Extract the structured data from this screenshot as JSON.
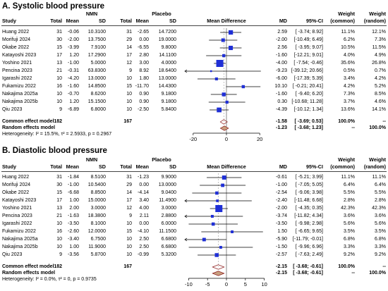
{
  "panels": [
    {
      "title": "A. Systolic blood pressure",
      "headers": {
        "study": "Study",
        "nmn": "NMN",
        "placebo": "Placebo",
        "total": "Total",
        "mean": "Mean",
        "sd": "SD",
        "mean_difference": "Mean Difference",
        "md": "MD",
        "ci": "95%-CI",
        "weight": "Weight",
        "common": "(common)",
        "random": "(random)"
      },
      "studies": [
        {
          "study": "Huang 2022",
          "nmn_total": "31",
          "nmn_mean": "-0.06",
          "nmn_sd": "10.3100",
          "pl_total": "31",
          "pl_mean": "-2.65",
          "pl_sd": "14.7200",
          "md": "2.59",
          "ci": "[ -3.74; 8.92]",
          "w_common": "11.1%",
          "w_random": "12.1%"
        },
        {
          "study": "Morifuji 2024",
          "nmn_total": "30",
          "nmn_mean": "-2.00",
          "nmn_sd": "13.7500",
          "pl_total": "29",
          "pl_mean": "0.00",
          "pl_sd": "19.0000",
          "md": "-2.00",
          "ci": "[-10.49; 6.49]",
          "w_common": "6.2%",
          "w_random": "7.3%"
        },
        {
          "study": "Okabe 2022",
          "nmn_total": "15",
          "nmn_mean": "-3.99",
          "nmn_sd": "7.9100",
          "pl_total": "14",
          "pl_mean": "-6.55",
          "pl_sd": "9.8000",
          "md": "2.56",
          "ci": "[ -3.95; 9.07]",
          "w_common": "10.5%",
          "w_random": "11.5%"
        },
        {
          "study": "Katayoshi 2023",
          "nmn_total": "17",
          "nmn_mean": "1.20",
          "nmn_sd": "17.2900",
          "pl_total": "17",
          "pl_mean": "2.80",
          "pl_sd": "14.1100",
          "md": "-1.60",
          "ci": "[-12.21; 9.01]",
          "w_common": "4.0%",
          "w_random": "4.9%"
        },
        {
          "study": "Yoshino 2021",
          "nmn_total": "13",
          "nmn_mean": "-1.00",
          "nmn_sd": "5.0000",
          "pl_total": "12",
          "pl_mean": "3.00",
          "pl_sd": "4.0000",
          "md": "-4.00",
          "ci": "[ -7.54; -0.46]",
          "w_common": "35.6%",
          "w_random": "26.8%"
        },
        {
          "study": "Pencina 2023",
          "nmn_total": "21",
          "nmn_mean": "-0.31",
          "nmn_sd": "63.8300",
          "pl_total": "9",
          "pl_mean": "8.92",
          "pl_sd": "18.6400",
          "md": "-9.23",
          "ci": "[-39.12; 20.66]",
          "w_common": "0.5%",
          "w_random": "0.7%"
        },
        {
          "study": "Igarashi 2022",
          "nmn_total": "10",
          "nmn_mean": "-4.20",
          "nmn_sd": "13.0000",
          "pl_total": "10",
          "pl_mean": "1.80",
          "pl_sd": "13.0000",
          "md": "-6.00",
          "ci": "[-17.39; 5.39]",
          "w_common": "3.4%",
          "w_random": "4.2%"
        },
        {
          "study": "Fukamizu 2022",
          "nmn_total": "16",
          "nmn_mean": "-1.60",
          "nmn_sd": "14.8500",
          "pl_total": "15",
          "pl_mean": "-11.70",
          "pl_sd": "14.4300",
          "md": "10.10",
          "ci": "[ -0.21; 20.41]",
          "w_common": "4.2%",
          "w_random": "5.2%"
        },
        {
          "study": "Nakajima 2025a",
          "nmn_total": "10",
          "nmn_mean": "-0.70",
          "nmn_sd": "8.6200",
          "pl_total": "10",
          "pl_mean": "0.90",
          "pl_sd": "9.1800",
          "md": "-1.60",
          "ci": "[ -9.40; 6.20]",
          "w_common": "7.3%",
          "w_random": "8.5%"
        },
        {
          "study": "Nakajima 2025b",
          "nmn_total": "10",
          "nmn_mean": "1.20",
          "nmn_sd": "15.1500",
          "pl_total": "10",
          "pl_mean": "0.90",
          "pl_sd": "9.1800",
          "md": "0.30",
          "ci": "[-10.68; 11.28]",
          "w_common": "3.7%",
          "w_random": "4.6%"
        },
        {
          "study": "Qiu 2023",
          "nmn_total": "9",
          "nmn_mean": "-6.89",
          "nmn_sd": "6.8000",
          "pl_total": "10",
          "pl_mean": "-2.50",
          "pl_sd": "5.8400",
          "md": "-4.39",
          "ci": "[-10.12; 1.34]",
          "w_common": "13.6%",
          "w_random": "14.1%"
        }
      ],
      "common": {
        "label": "Common effect model",
        "nmn_total": "182",
        "pl_total": "167",
        "md": "-1.58",
        "ci": "[ -3.69; 0.53]",
        "w_common": "100.0%",
        "w_random": "--"
      },
      "random": {
        "label": "Random effects model",
        "md": "-1.23",
        "ci": "[ -3.68; 1.23]",
        "w_common": "--",
        "w_random": "100.0%"
      },
      "heterogeneity": "Heterogeneity: I² = 15.5%, τ² = 2.5933, p = 0.2967",
      "chart_data": {
        "type": "forest",
        "xlim": [
          -25,
          25
        ],
        "ticks": [
          -20,
          0,
          20
        ],
        "reference_line": 0,
        "points": [
          {
            "md": 2.59,
            "lo": -3.74,
            "hi": 8.92,
            "w": 11.1
          },
          {
            "md": -2.0,
            "lo": -10.49,
            "hi": 6.49,
            "w": 6.2
          },
          {
            "md": 2.56,
            "lo": -3.95,
            "hi": 9.07,
            "w": 10.5
          },
          {
            "md": -1.6,
            "lo": -12.21,
            "hi": 9.01,
            "w": 4.0
          },
          {
            "md": -4.0,
            "lo": -7.54,
            "hi": -0.46,
            "w": 35.6
          },
          {
            "md": -9.23,
            "lo": -39.12,
            "hi": 20.66,
            "w": 0.5
          },
          {
            "md": -6.0,
            "lo": -17.39,
            "hi": 5.39,
            "w": 3.4
          },
          {
            "md": 10.1,
            "lo": -0.21,
            "hi": 20.41,
            "w": 4.2
          },
          {
            "md": -1.6,
            "lo": -9.4,
            "hi": 6.2,
            "w": 7.3
          },
          {
            "md": 0.3,
            "lo": -10.68,
            "hi": 11.28,
            "w": 3.7
          },
          {
            "md": -4.39,
            "lo": -10.12,
            "hi": 1.34,
            "w": 13.6
          }
        ],
        "common": {
          "md": -1.58,
          "lo": -3.69,
          "hi": 0.53
        },
        "random": {
          "md": -1.23,
          "lo": -3.68,
          "hi": 1.23
        }
      }
    },
    {
      "title": "B. Diastolic blood pressure",
      "headers": {
        "study": "Study",
        "nmn": "NMN",
        "placebo": "Placebo",
        "total": "Total",
        "mean": "Mean",
        "sd": "SD",
        "mean_difference": "Mean Difference",
        "md": "MD",
        "ci": "95%-CI",
        "weight": "Weight",
        "common": "(common)",
        "random": "(random)"
      },
      "studies": [
        {
          "study": "Huang 2022",
          "nmn_total": "31",
          "nmn_mean": "-1.84",
          "nmn_sd": "8.5100",
          "pl_total": "31",
          "pl_mean": "-1.23",
          "pl_sd": "9.9000",
          "md": "-0.61",
          "ci": "[ -5.21; 3.99]",
          "w_common": "11.1%",
          "w_random": "11.1%"
        },
        {
          "study": "Morifuji 2024",
          "nmn_total": "30",
          "nmn_mean": "-1.00",
          "nmn_sd": "10.5400",
          "pl_total": "29",
          "pl_mean": "0.00",
          "pl_sd": "13.0000",
          "md": "-1.00",
          "ci": "[ -7.05; 5.05]",
          "w_common": "6.4%",
          "w_random": "6.4%"
        },
        {
          "study": "Okabe 2022",
          "nmn_total": "15",
          "nmn_mean": "-6.68",
          "nmn_sd": "8.8500",
          "pl_total": "14",
          "pl_mean": "-4.14",
          "pl_sd": "9.0400",
          "md": "-2.54",
          "ci": "[ -9.06; 3.98]",
          "w_common": "5.5%",
          "w_random": "5.5%"
        },
        {
          "study": "Katayoshi 2023",
          "nmn_total": "17",
          "nmn_mean": "1.00",
          "nmn_sd": "15.0000",
          "pl_total": "17",
          "pl_mean": "3.40",
          "pl_sd": "11.4900",
          "md": "-2.40",
          "ci": "[-11.48; 6.68]",
          "w_common": "2.8%",
          "w_random": "2.8%"
        },
        {
          "study": "Yoshino 2021",
          "nmn_total": "13",
          "nmn_mean": "2.00",
          "nmn_sd": "3.0000",
          "pl_total": "12",
          "pl_mean": "4.00",
          "pl_sd": "3.0000",
          "md": "-2.00",
          "ci": "[ -4.35; 0.35]",
          "w_common": "42.3%",
          "w_random": "42.3%"
        },
        {
          "study": "Pencina 2023",
          "nmn_total": "21",
          "nmn_mean": "-1.63",
          "nmn_sd": "18.3800",
          "pl_total": "9",
          "pl_mean": "2.11",
          "pl_sd": "2.8800",
          "md": "-3.74",
          "ci": "[-11.82; 4.34]",
          "w_common": "3.6%",
          "w_random": "3.6%"
        },
        {
          "study": "Igarashi 2022",
          "nmn_total": "10",
          "nmn_mean": "-3.50",
          "nmn_sd": "8.1000",
          "pl_total": "10",
          "pl_mean": "0.00",
          "pl_sd": "6.0000",
          "md": "-3.50",
          "ci": "[ -9.98; 2.98]",
          "w_common": "5.6%",
          "w_random": "5.6%"
        },
        {
          "study": "Fukamizu 2022",
          "nmn_total": "16",
          "nmn_mean": "-2.60",
          "nmn_sd": "12.0000",
          "pl_total": "15",
          "pl_mean": "-4.10",
          "pl_sd": "11.1500",
          "md": "1.50",
          "ci": "[ -6.65; 9.65]",
          "w_common": "3.5%",
          "w_random": "3.5%"
        },
        {
          "study": "Nakajima 2025a",
          "nmn_total": "10",
          "nmn_mean": "-3.40",
          "nmn_sd": "6.7500",
          "pl_total": "10",
          "pl_mean": "2.50",
          "pl_sd": "6.6800",
          "md": "-5.90",
          "ci": "[-11.79; -0.01]",
          "w_common": "6.8%",
          "w_random": "6.8%"
        },
        {
          "study": "Nakajima 2025b",
          "nmn_total": "10",
          "nmn_mean": "1.00",
          "nmn_sd": "11.9000",
          "pl_total": "10",
          "pl_mean": "2.50",
          "pl_sd": "6.6800",
          "md": "-1.50",
          "ci": "[ -9.96; 6.96]",
          "w_common": "3.3%",
          "w_random": "3.3%"
        },
        {
          "study": "Qiu 2023",
          "nmn_total": "9",
          "nmn_mean": "-3.56",
          "nmn_sd": "5.8700",
          "pl_total": "10",
          "pl_mean": "-0.99",
          "pl_sd": "5.3200",
          "md": "-2.57",
          "ci": "[ -7.63; 2.49]",
          "w_common": "9.2%",
          "w_random": "9.2%"
        }
      ],
      "common": {
        "label": "Common effect model",
        "nmn_total": "182",
        "pl_total": "167",
        "md": "-2.15",
        "ci": "[ -3.68; -0.61]",
        "w_common": "100.0%",
        "w_random": "--"
      },
      "random": {
        "label": "Random effects model",
        "md": "-2.15",
        "ci": "[ -3.68; -0.61]",
        "w_common": "--",
        "w_random": "100.0%"
      },
      "heterogeneity": "Heterogeneity: I² = 0.0%, τ² = 0, p = 0.9735",
      "chart_data": {
        "type": "forest",
        "xlim": [
          -11,
          11
        ],
        "ticks": [
          -10,
          -5,
          0,
          5,
          10
        ],
        "reference_line": 0,
        "points": [
          {
            "md": -0.61,
            "lo": -5.21,
            "hi": 3.99,
            "w": 11.1
          },
          {
            "md": -1.0,
            "lo": -7.05,
            "hi": 5.05,
            "w": 6.4
          },
          {
            "md": -2.54,
            "lo": -9.06,
            "hi": 3.98,
            "w": 5.5
          },
          {
            "md": -2.4,
            "lo": -11.48,
            "hi": 6.68,
            "w": 2.8
          },
          {
            "md": -2.0,
            "lo": -4.35,
            "hi": 0.35,
            "w": 42.3
          },
          {
            "md": -3.74,
            "lo": -11.82,
            "hi": 4.34,
            "w": 3.6
          },
          {
            "md": -3.5,
            "lo": -9.98,
            "hi": 2.98,
            "w": 5.6
          },
          {
            "md": 1.5,
            "lo": -6.65,
            "hi": 9.65,
            "w": 3.5
          },
          {
            "md": -5.9,
            "lo": -11.79,
            "hi": -0.01,
            "w": 6.8
          },
          {
            "md": -1.5,
            "lo": -9.96,
            "hi": 6.96,
            "w": 3.3
          },
          {
            "md": -2.57,
            "lo": -7.63,
            "hi": 2.49,
            "w": 9.2
          }
        ],
        "common": {
          "md": -2.15,
          "lo": -3.68,
          "hi": -0.61
        },
        "random": {
          "md": -2.15,
          "lo": -3.68,
          "hi": -0.61
        }
      }
    }
  ],
  "colors": {
    "square": "#1f2fd6",
    "ci_line": "#000000",
    "common_diamond": "#8b1a1a",
    "random_diamond": "#8b1a1a",
    "random_fill": "#c8a080"
  }
}
